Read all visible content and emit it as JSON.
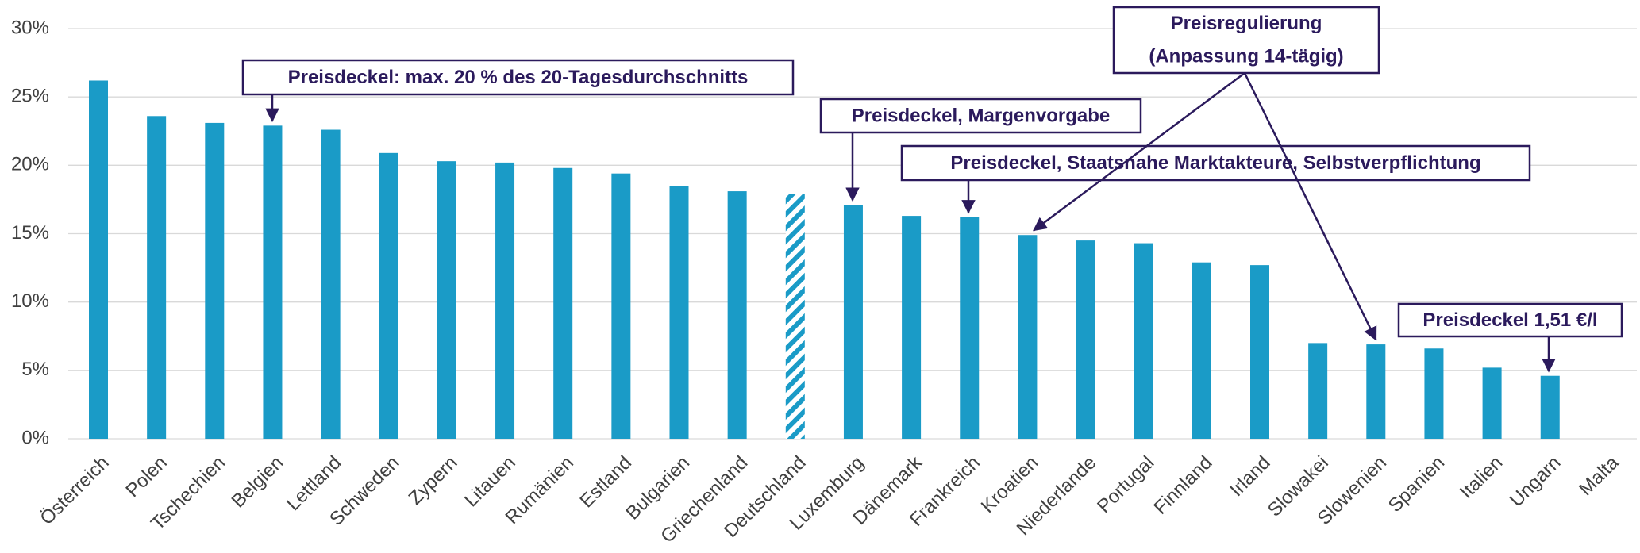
{
  "chart_data": {
    "type": "bar",
    "categories": [
      "Österreich",
      "Polen",
      "Tschechien",
      "Belgien",
      "Lettland",
      "Schweden",
      "Zypern",
      "Litauen",
      "Rumänien",
      "Estland",
      "Bulgarien",
      "Griechenland",
      "Deutschland",
      "Luxemburg",
      "Dänemark",
      "Frankreich",
      "Kroatien",
      "Niederlande",
      "Portugal",
      "Finnland",
      "Irland",
      "Slowakei",
      "Slowenien",
      "Spanien",
      "Italien",
      "Ungarn",
      "Malta"
    ],
    "values": [
      26.2,
      23.6,
      23.1,
      22.9,
      22.6,
      20.9,
      20.3,
      20.2,
      19.8,
      19.4,
      18.5,
      18.1,
      17.9,
      17.1,
      16.3,
      16.2,
      14.9,
      14.5,
      14.3,
      12.9,
      12.7,
      7.0,
      6.9,
      6.6,
      5.2,
      4.6,
      null
    ],
    "color": "#1a9bc7",
    "hatched": [
      12
    ],
    "ylim": [
      0,
      30
    ],
    "yticks": [
      {
        "value": 0,
        "label": "0%"
      },
      {
        "value": 5,
        "label": "5%"
      },
      {
        "value": 10,
        "label": "10%"
      },
      {
        "value": 15,
        "label": "15%"
      },
      {
        "value": 20,
        "label": "20%"
      },
      {
        "value": 25,
        "label": "25%"
      },
      {
        "value": 30,
        "label": "30%"
      }
    ],
    "grid": true,
    "annotations": [
      {
        "text": [
          "Preisdeckel: max. 20 % des 20-Tagesdurchschnitts"
        ],
        "targets": [
          3
        ]
      },
      {
        "text": [
          "Preisdeckel, Margenvorgabe"
        ],
        "targets": [
          13
        ]
      },
      {
        "text": [
          "Preisdeckel, Staatsnahe Marktakteure, Selbstverpflichtung"
        ],
        "targets": [
          15
        ]
      },
      {
        "text": [
          "Preisregulierung",
          "(Anpassung 14-tägig)"
        ],
        "targets": [
          16,
          22
        ]
      },
      {
        "text": [
          "Preisdeckel 1,51 €/l"
        ],
        "targets": [
          25
        ]
      }
    ]
  }
}
